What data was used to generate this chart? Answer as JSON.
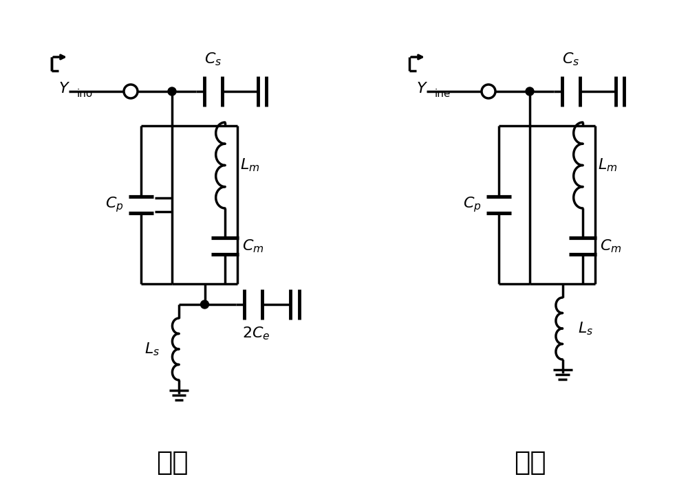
{
  "bg_color": "#ffffff",
  "line_color": "#000000",
  "lw": 2.5,
  "font_color": "#000000",
  "label_odd": "奇模",
  "label_even": "偶模",
  "label_Yino": "Y",
  "label_Yino_sub": "ino",
  "label_Yine": "Y",
  "label_Yine_sub": "ine",
  "label_Cs": "C",
  "label_Cs_sub": "s",
  "label_Cp": "C",
  "label_Cp_sub": "p",
  "label_Lm": "L",
  "label_Lm_sub": "m",
  "label_Cm": "C",
  "label_Cm_sub": "m",
  "label_Ls": "L",
  "label_Ls_sub": "s",
  "label_2Ce": "2C",
  "label_2Ce_sub": "e"
}
